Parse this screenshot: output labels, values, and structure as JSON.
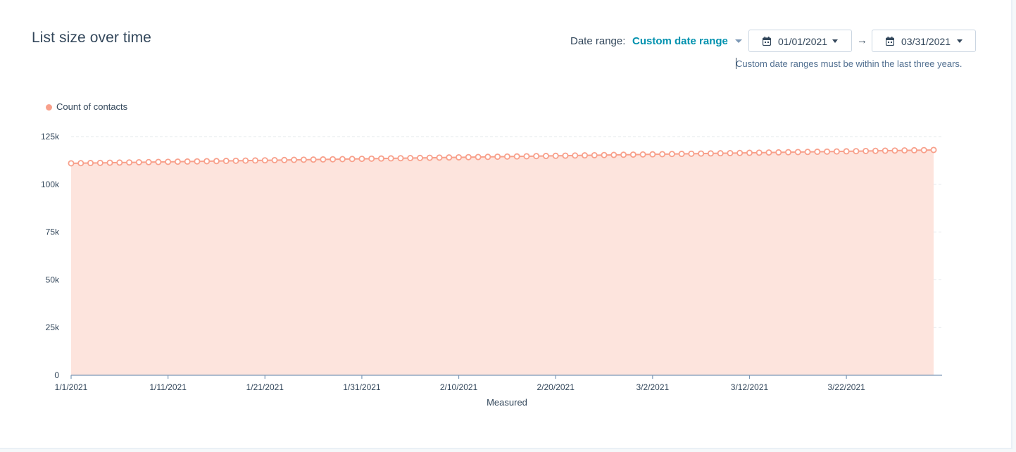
{
  "header": {
    "title": "List size over time",
    "date_range_label": "Date range:",
    "date_range_value": "Custom date range",
    "start_date": "01/01/2021",
    "end_date": "03/31/2021",
    "arrow": "→",
    "hint": "Custom date ranges must be within the last three years."
  },
  "colors": {
    "series_stroke": "#f8a08b",
    "series_fill": "#fde4dd",
    "link": "#0091ae",
    "text": "#33475b"
  },
  "icons": {
    "calendar": "calendar-icon",
    "caret": "chevron-down-icon",
    "arrow": "arrow-right-icon"
  },
  "chart_data": {
    "type": "area",
    "xlabel": "Measured",
    "ylabel": "",
    "ylim": [
      0,
      125000
    ],
    "yticks": [
      0,
      25000,
      50000,
      75000,
      100000,
      125000
    ],
    "ytick_labels": [
      "0",
      "25k",
      "50k",
      "75k",
      "100k",
      "125k"
    ],
    "x_start": "2021-01-01",
    "x_end": "2021-03-31",
    "xtick_labels": [
      "1/1/2021",
      "1/11/2021",
      "1/21/2021",
      "1/31/2021",
      "2/10/2021",
      "2/20/2021",
      "3/2/2021",
      "3/12/2021",
      "3/22/2021"
    ],
    "xtick_dates": [
      "2021-01-01",
      "2021-01-11",
      "2021-01-21",
      "2021-01-31",
      "2021-02-10",
      "2021-02-20",
      "2021-03-02",
      "2021-03-12",
      "2021-03-22"
    ],
    "grid": true,
    "legend_position": "top-left",
    "series": [
      {
        "name": "Count of contacts",
        "values_start": 111000,
        "values_end": 118000,
        "point_count": 90
      }
    ]
  }
}
